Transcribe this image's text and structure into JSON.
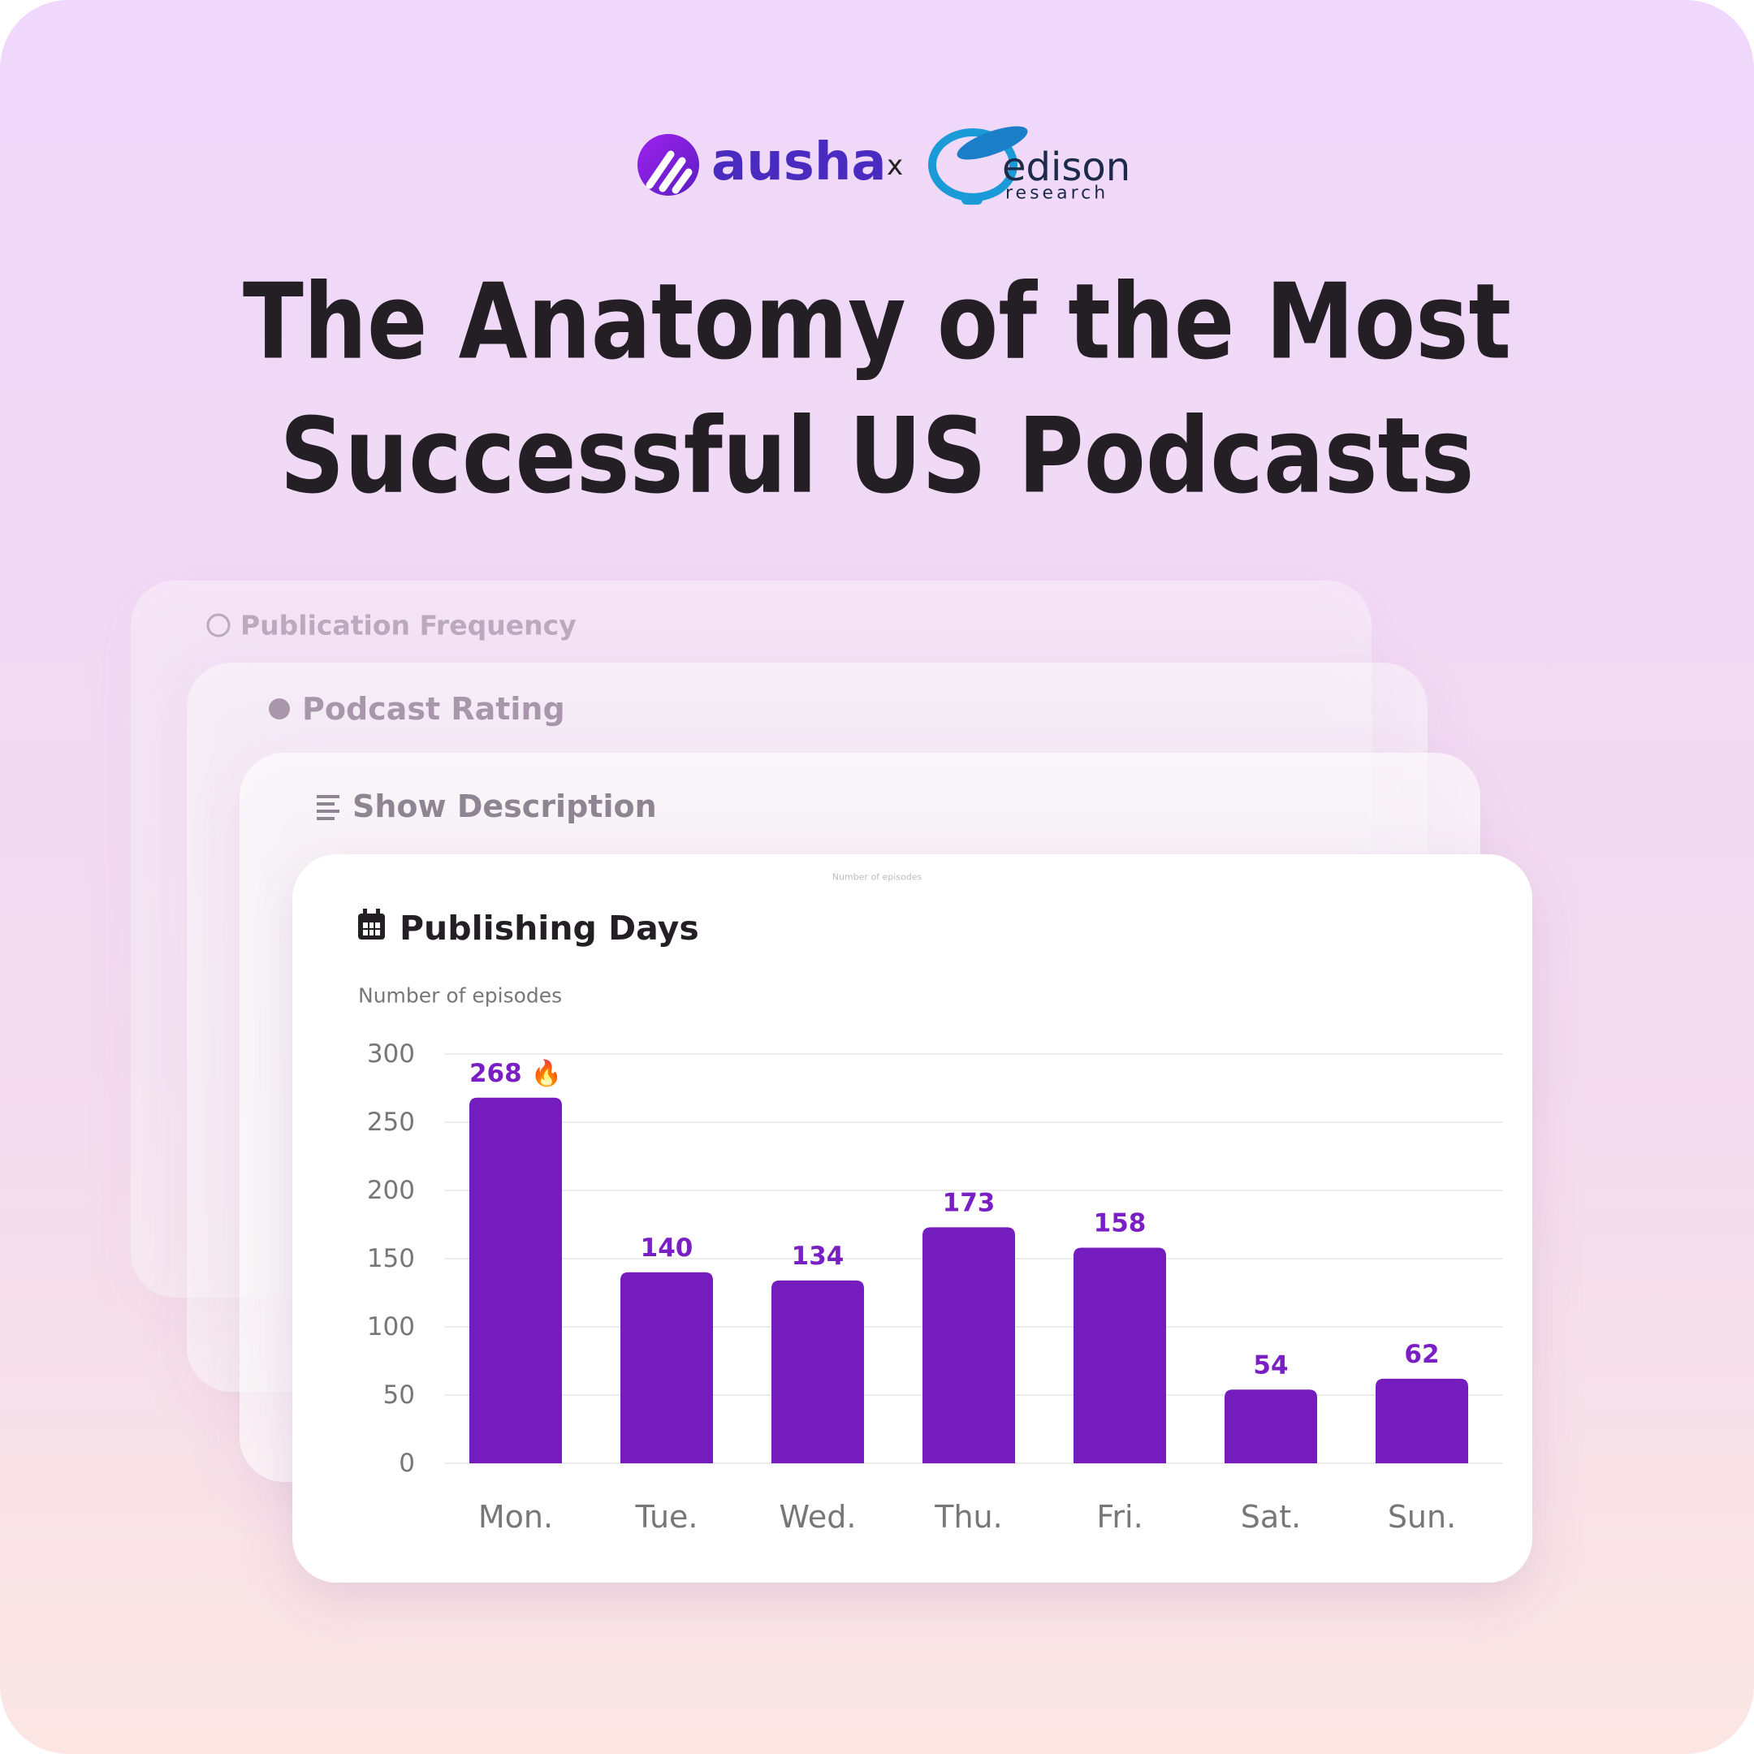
{
  "header": {
    "brand_left": "ausha",
    "separator": "x",
    "brand_right": "edison",
    "brand_right_sub": "research",
    "title_lines": [
      "The Anatomy of the Most",
      "Successful US Podcasts"
    ]
  },
  "cards": [
    "Publication Frequency",
    "Podcast Rating",
    "Show Description"
  ],
  "chart_data": {
    "type": "bar",
    "title": "Publishing Days",
    "ylabel": "Number of episodes",
    "categories": [
      "Mon.",
      "Tue.",
      "Wed.",
      "Thu.",
      "Fri.",
      "Sat.",
      "Sun."
    ],
    "values": [
      268,
      140,
      134,
      173,
      158,
      54,
      62
    ],
    "value_labels": [
      "268 🔥",
      "140",
      "134",
      "173",
      "158",
      "54",
      "62"
    ],
    "color": "#741cbd",
    "label_color": "#7a1fc4",
    "ylim": [
      0,
      300
    ],
    "yticks": [
      0,
      50,
      100,
      150,
      200,
      250,
      300
    ],
    "grid": true
  }
}
